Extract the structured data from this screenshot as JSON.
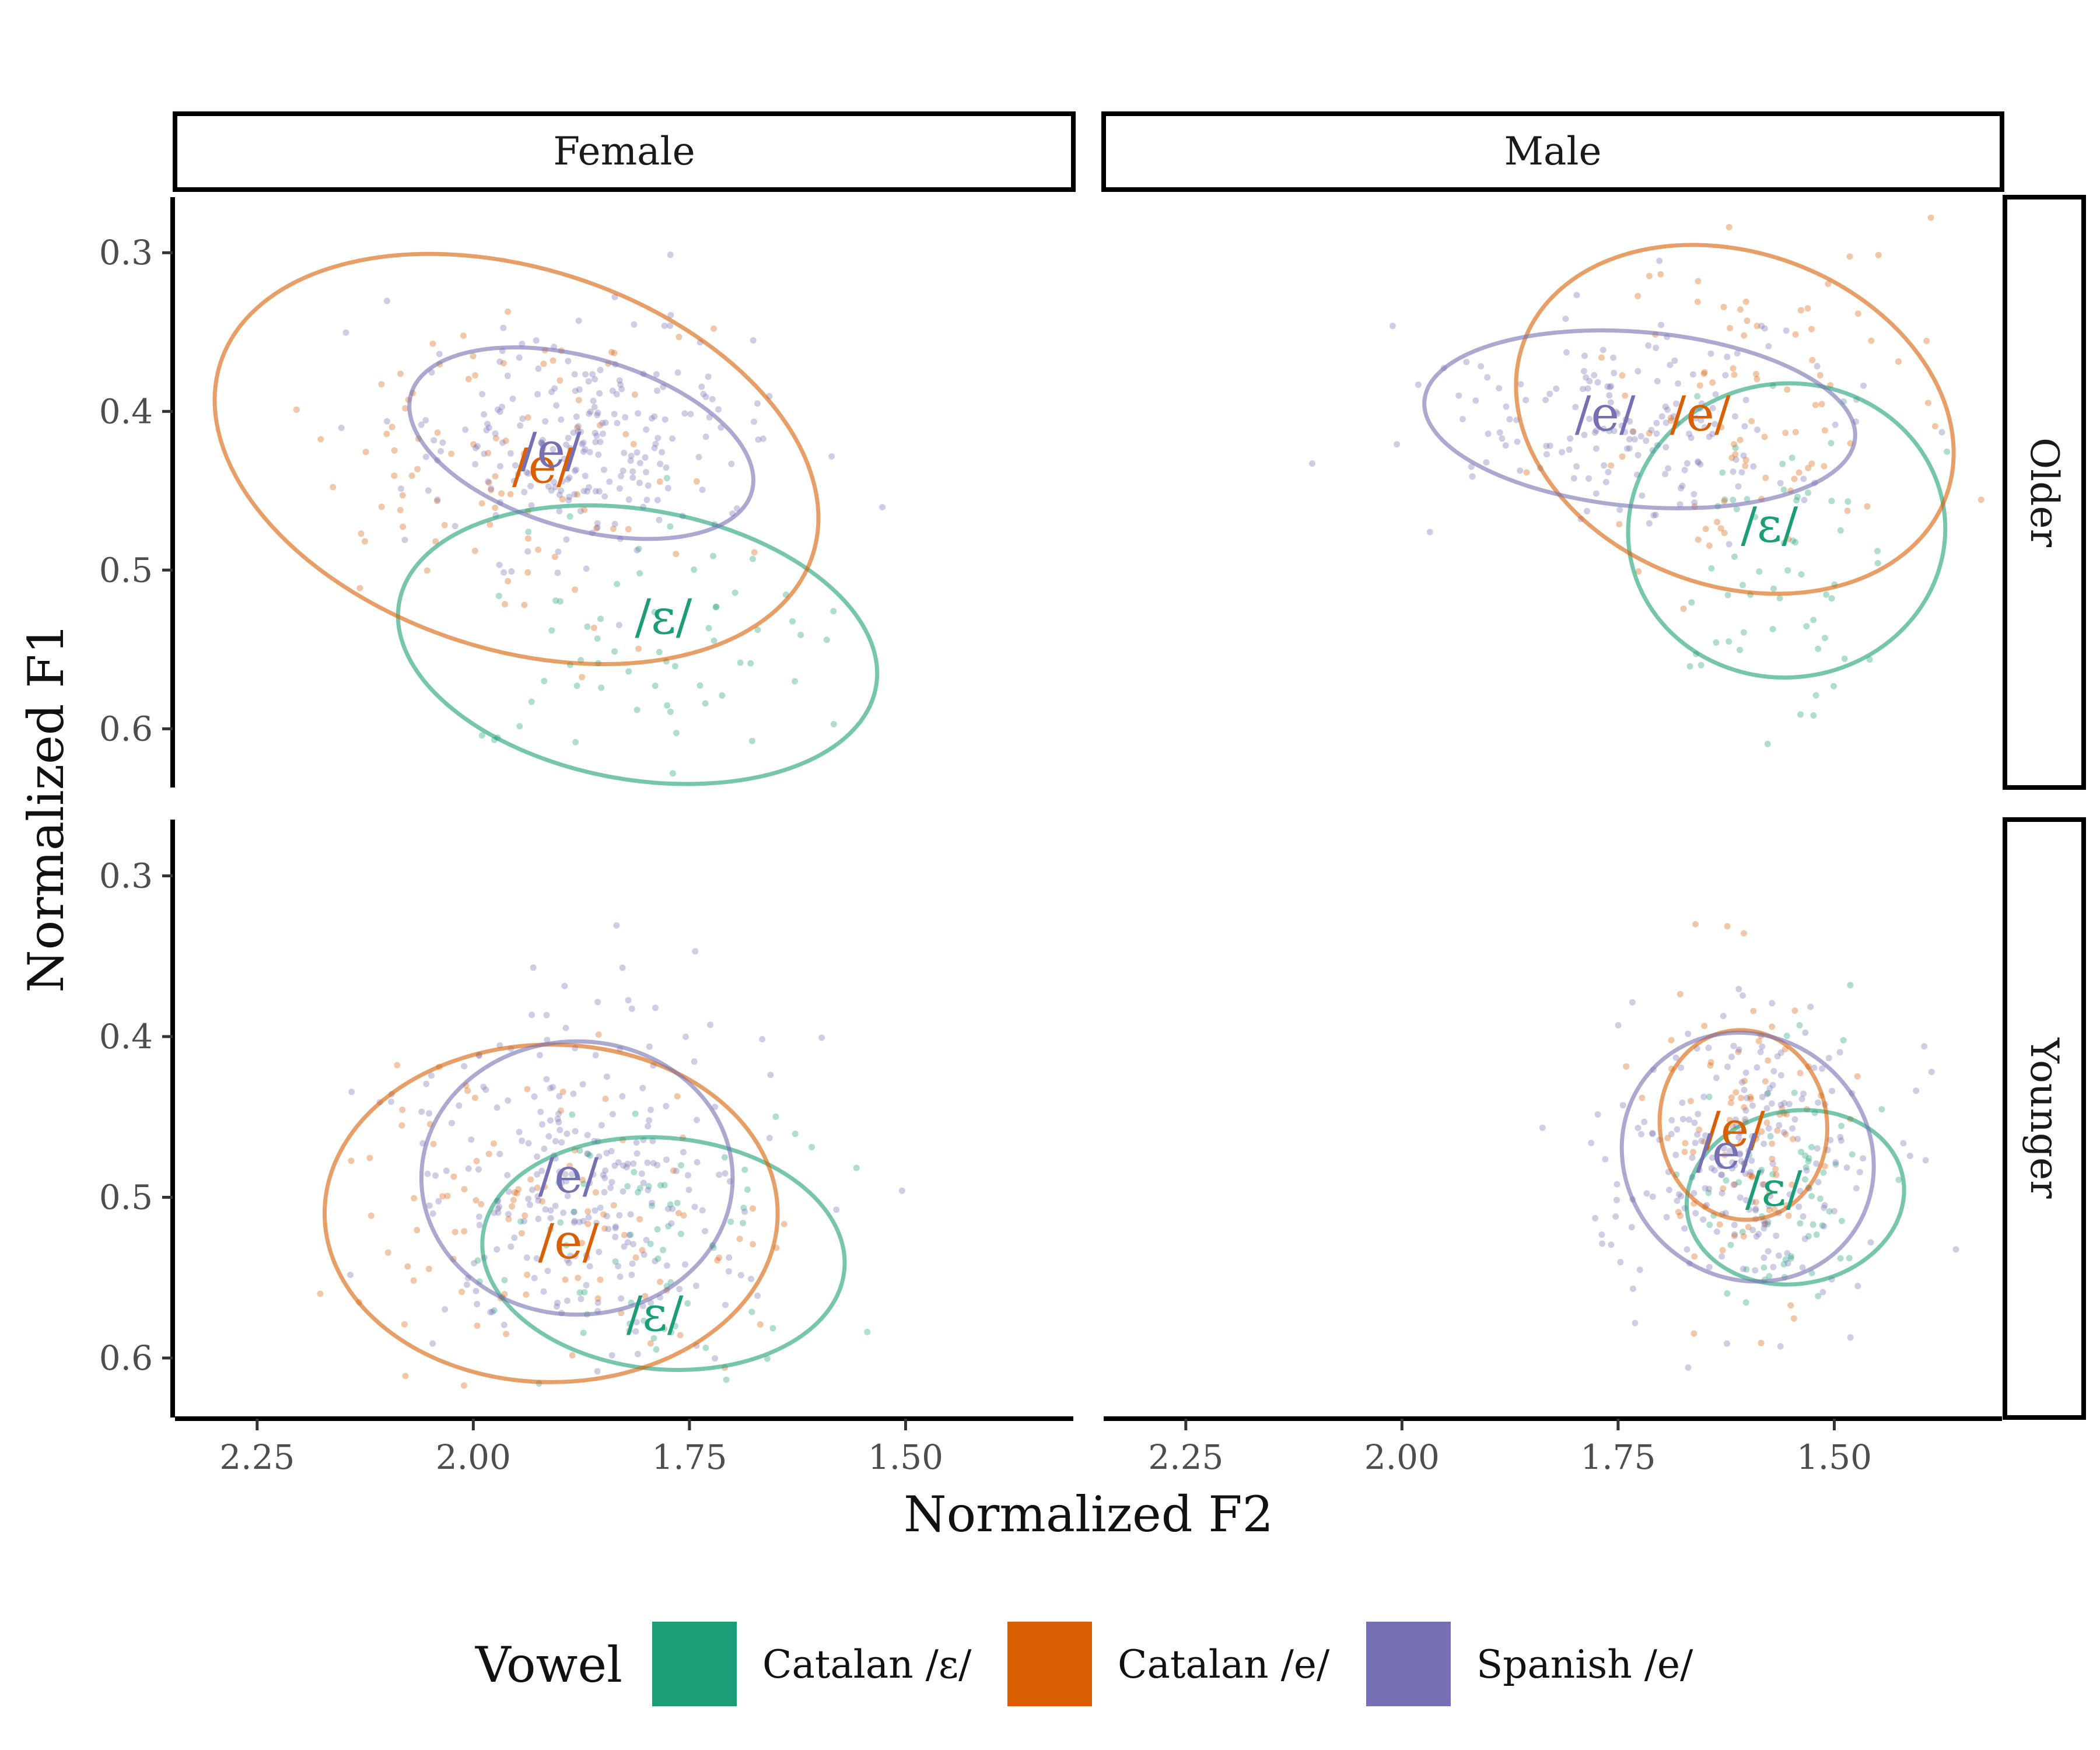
{
  "chart_data": {
    "type": "scatter",
    "xlabel": "Normalized F2",
    "ylabel": "Normalized F1",
    "xlim_reversed": [
      2.345,
      1.306
    ],
    "ylim_reversed": [
      0.265,
      0.637
    ],
    "x_ticks": [
      "2.25",
      "2.00",
      "1.75",
      "1.50"
    ],
    "x_tick_values": [
      2.25,
      2.0,
      1.75,
      1.5
    ],
    "y_ticks": [
      "0.3",
      "0.4",
      "0.5",
      "0.6"
    ],
    "y_tick_values": [
      0.3,
      0.4,
      0.5,
      0.6
    ],
    "columns": [
      "Female",
      "Male"
    ],
    "rows": [
      "Older",
      "Younger"
    ],
    "legend": {
      "title": "Vowel",
      "position": "bottom",
      "items": [
        {
          "key": "cat_open",
          "label": "Catalan /ɛ/",
          "color": "#1B9E77"
        },
        {
          "key": "cat_close",
          "label": "Catalan /e/",
          "color": "#D95F02"
        },
        {
          "key": "spa",
          "label": "Spanish /e/",
          "color": "#7570B3"
        }
      ]
    },
    "panels": [
      {
        "column": "Female",
        "row": "Older",
        "groups": [
          {
            "key": "cat_open",
            "label": "/ɛ/",
            "center": [
              1.81,
              0.547
            ],
            "rx": 0.28,
            "ry": 0.085,
            "angle": 10,
            "label_at": [
              1.78,
              0.54
            ],
            "n": 60,
            "spread": [
              0.11,
              0.04
            ]
          },
          {
            "key": "cat_close",
            "label": "/e/",
            "center": [
              1.95,
              0.43
            ],
            "rx": 0.36,
            "ry": 0.12,
            "angle": 18,
            "label_at": [
              1.92,
              0.445
            ],
            "n": 90,
            "spread": [
              0.12,
              0.055
            ]
          },
          {
            "key": "spa",
            "label": "/e/",
            "center": [
              1.875,
              0.42
            ],
            "rx": 0.205,
            "ry": 0.054,
            "angle": 16,
            "label_at": [
              1.91,
              0.435
            ],
            "n": 230,
            "spread": [
              0.1,
              0.035
            ]
          }
        ]
      },
      {
        "column": "Male",
        "row": "Older",
        "groups": [
          {
            "key": "cat_open",
            "label": "/ɛ/",
            "center": [
              1.555,
              0.475
            ],
            "rx": 0.17,
            "ry": 0.1,
            "angle": 85,
            "label_at": [
              1.575,
              0.482
            ],
            "n": 60,
            "spread": [
              0.07,
              0.055
            ]
          },
          {
            "key": "cat_close",
            "label": "/e/",
            "center": [
              1.615,
              0.405
            ],
            "rx": 0.26,
            "ry": 0.105,
            "angle": 20,
            "label_at": [
              1.655,
              0.412
            ],
            "n": 90,
            "spread": [
              0.1,
              0.05
            ]
          },
          {
            "key": "spa",
            "label": "/e/",
            "center": [
              1.725,
              0.405
            ],
            "rx": 0.25,
            "ry": 0.055,
            "angle": 5,
            "label_at": [
              1.765,
              0.412
            ],
            "n": 170,
            "spread": [
              0.12,
              0.035
            ]
          }
        ]
      },
      {
        "column": "Female",
        "row": "Younger",
        "groups": [
          {
            "key": "cat_open",
            "label": "/ɛ/",
            "center": [
              1.78,
              0.535
            ],
            "rx": 0.21,
            "ry": 0.072,
            "angle": 5,
            "label_at": [
              1.79,
              0.583
            ],
            "n": 70,
            "spread": [
              0.09,
              0.045
            ]
          },
          {
            "key": "cat_close",
            "label": "/e/",
            "center": [
              1.91,
              0.51
            ],
            "rx": 0.262,
            "ry": 0.105,
            "angle": 0,
            "label_at": [
              1.89,
              0.538
            ],
            "n": 100,
            "spread": [
              0.12,
              0.05
            ]
          },
          {
            "key": "spa",
            "label": "/e/",
            "center": [
              1.88,
              0.488
            ],
            "rx": 0.18,
            "ry": 0.085,
            "angle": 0,
            "label_at": [
              1.89,
              0.497
            ],
            "n": 260,
            "spread": [
              0.1,
              0.05
            ]
          }
        ]
      },
      {
        "column": "Male",
        "row": "Younger",
        "groups": [
          {
            "key": "cat_open",
            "label": "/ɛ/",
            "center": [
              1.545,
              0.5
            ],
            "rx": 0.1,
            "ry": 0.068,
            "angle": 80,
            "label_at": [
              1.57,
              0.505
            ],
            "n": 60,
            "spread": [
              0.05,
              0.045
            ]
          },
          {
            "key": "cat_close",
            "label": "/e/",
            "center": [
              1.605,
              0.455
            ],
            "rx": 0.11,
            "ry": 0.052,
            "angle": 82,
            "label_at": [
              1.615,
              0.468
            ],
            "n": 90,
            "spread": [
              0.05,
              0.05
            ]
          },
          {
            "key": "spa",
            "label": "/e/",
            "center": [
              1.6,
              0.475
            ],
            "rx": 0.15,
            "ry": 0.075,
            "angle": 40,
            "label_at": [
              1.625,
              0.482
            ],
            "n": 220,
            "spread": [
              0.08,
              0.045
            ]
          }
        ]
      }
    ]
  }
}
